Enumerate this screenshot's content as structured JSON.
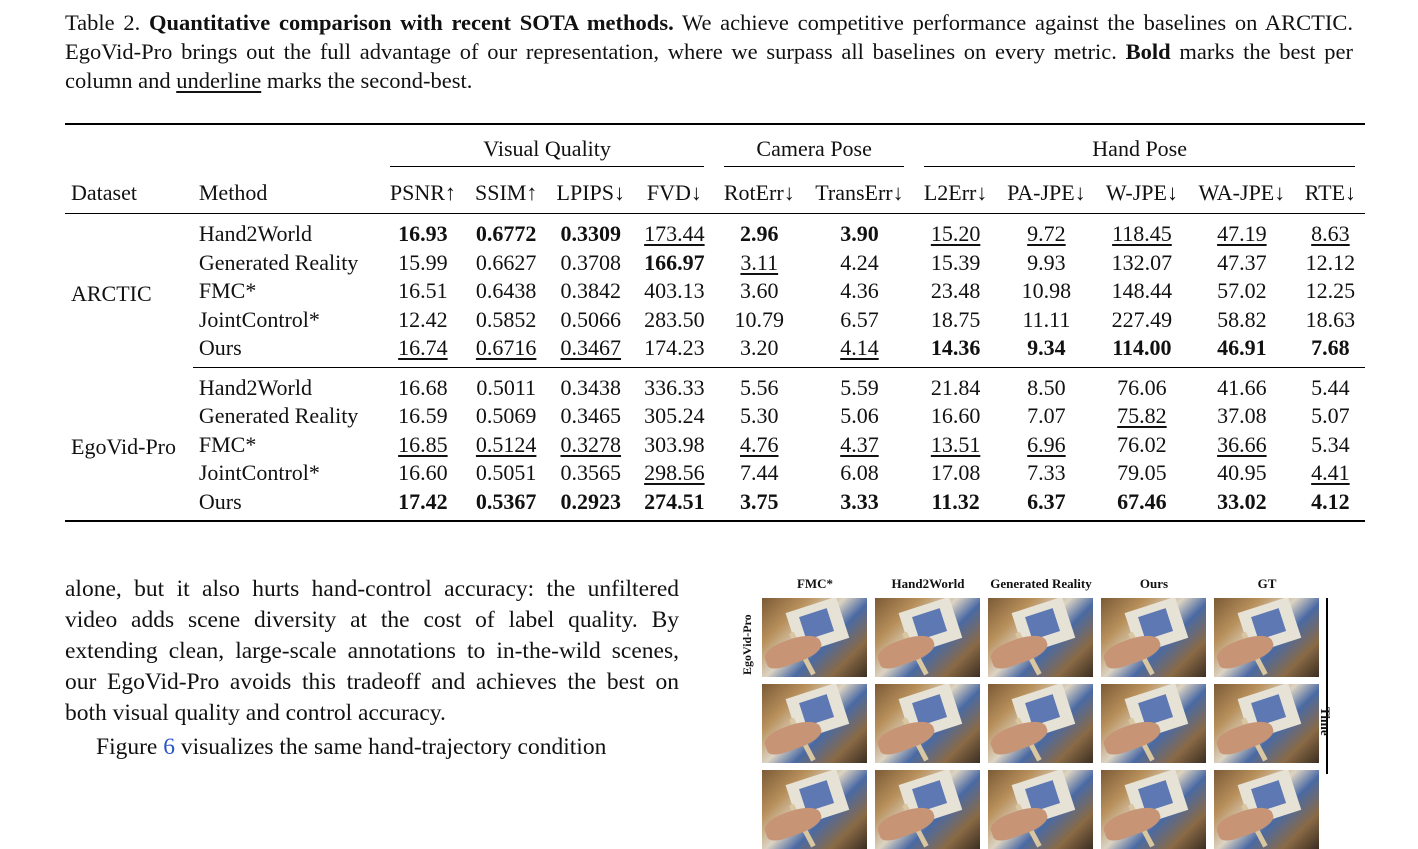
{
  "caption": {
    "label": "Table 2.",
    "title": "Quantitative comparison with recent SOTA methods.",
    "text1": "We achieve competitive performance against the baselines on ARCTIC. EgoVid-Pro brings out the full advantage of our representation, where we surpass all baselines on every metric.",
    "bold_word": "Bold",
    "text2": "marks the best per column and",
    "underline_word": "underline",
    "text3": "marks the second-best."
  },
  "table": {
    "groups": [
      "Visual Quality",
      "Camera Pose",
      "Hand Pose"
    ],
    "headers": {
      "dataset": "Dataset",
      "method": "Method",
      "metrics": [
        "PSNR↑",
        "SSIM↑",
        "LPIPS↓",
        "FVD↓",
        "RotErr↓",
        "TransErr↓",
        "L2Err↓",
        "PA-JPE↓",
        "W-JPE↓",
        "WA-JPE↓",
        "RTE↓"
      ]
    },
    "sections": [
      {
        "dataset": "ARCTIC",
        "rows": [
          {
            "method": "Hand2World",
            "values": [
              "16.93",
              "0.6772",
              "0.3309",
              "173.44",
              "2.96",
              "3.90",
              "15.20",
              "9.72",
              "118.45",
              "47.19",
              "8.63"
            ]
          },
          {
            "method": "Generated Reality",
            "values": [
              "15.99",
              "0.6627",
              "0.3708",
              "166.97",
              "3.11",
              "4.24",
              "15.39",
              "9.93",
              "132.07",
              "47.37",
              "12.12"
            ]
          },
          {
            "method": "FMC*",
            "values": [
              "16.51",
              "0.6438",
              "0.3842",
              "403.13",
              "3.60",
              "4.36",
              "23.48",
              "10.98",
              "148.44",
              "57.02",
              "12.25"
            ]
          },
          {
            "method": "JointControl*",
            "values": [
              "12.42",
              "0.5852",
              "0.5066",
              "283.50",
              "10.79",
              "6.57",
              "18.75",
              "11.11",
              "227.49",
              "58.82",
              "18.63"
            ]
          },
          {
            "method": "Ours",
            "values": [
              "16.74",
              "0.6716",
              "0.3467",
              "174.23",
              "3.20",
              "4.14",
              "14.36",
              "9.34",
              "114.00",
              "46.91",
              "7.68"
            ]
          }
        ]
      },
      {
        "dataset": "EgoVid-Pro",
        "rows": [
          {
            "method": "Hand2World",
            "values": [
              "16.68",
              "0.5011",
              "0.3438",
              "336.33",
              "5.56",
              "5.59",
              "21.84",
              "8.50",
              "76.06",
              "41.66",
              "5.44"
            ]
          },
          {
            "method": "Generated Reality",
            "values": [
              "16.59",
              "0.5069",
              "0.3465",
              "305.24",
              "5.30",
              "5.06",
              "16.60",
              "7.07",
              "75.82",
              "37.08",
              "5.07"
            ]
          },
          {
            "method": "FMC*",
            "values": [
              "16.85",
              "0.5124",
              "0.3278",
              "303.98",
              "4.76",
              "4.37",
              "13.51",
              "6.96",
              "76.02",
              "36.66",
              "5.34"
            ]
          },
          {
            "method": "JointControl*",
            "values": [
              "16.60",
              "0.5051",
              "0.3565",
              "298.56",
              "7.44",
              "6.08",
              "17.08",
              "7.33",
              "79.05",
              "40.95",
              "4.41"
            ]
          },
          {
            "method": "Ours",
            "values": [
              "17.42",
              "0.5367",
              "0.2923",
              "274.51",
              "3.75",
              "3.33",
              "11.32",
              "6.37",
              "67.46",
              "33.02",
              "4.12"
            ]
          }
        ]
      }
    ]
  },
  "body": {
    "para1": "alone, but it also hurts hand-control accuracy: the unfiltered video adds scene diversity at the cost of label quality. By extending clean, large-scale annotations to in-the-wild scenes, our EgoVid-Pro avoids this tradeoff and achieves the best on both visual quality and control accuracy.",
    "para2_start": "Figure",
    "para2_ref": "6",
    "para2_end": "visualizes the same hand-trajectory condition"
  },
  "figure": {
    "columns": [
      "FMC*",
      "Hand2World",
      "Generated Reality",
      "Ours",
      "GT"
    ],
    "row_label": "EgoVid-Pro",
    "axis_label": "Time"
  }
}
